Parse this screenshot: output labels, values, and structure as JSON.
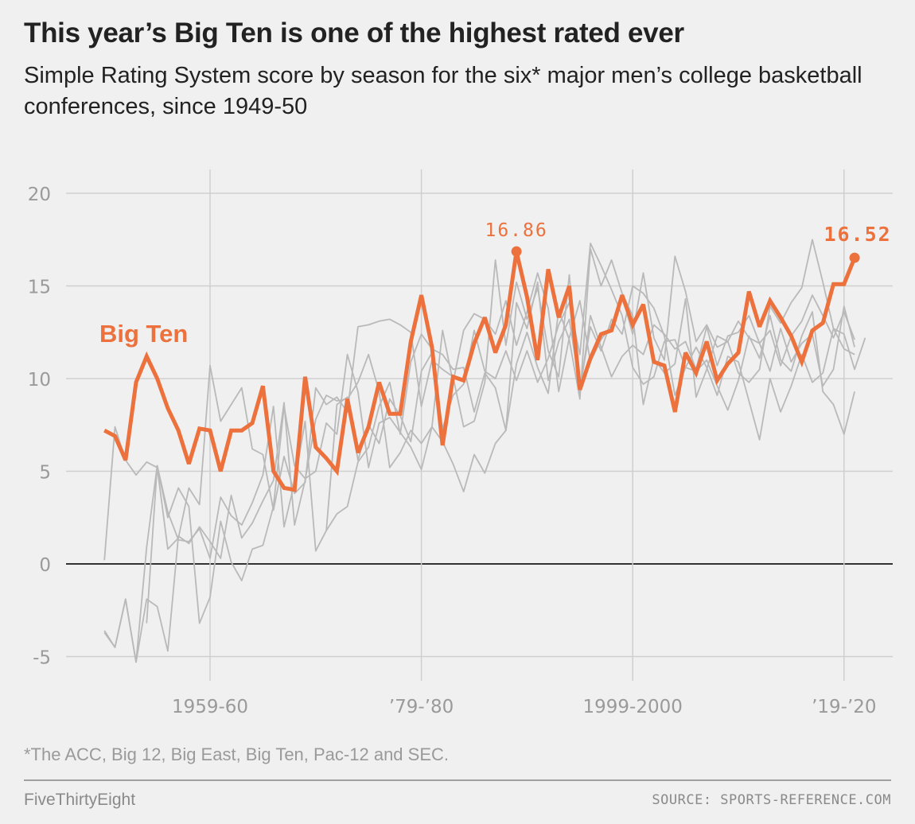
{
  "header": {
    "title": "This year’s Big Ten is one of the highest rated ever",
    "subtitle": "Simple Rating System score by season for the six* major men’s college basketball conferences, since 1949-50"
  },
  "footer": {
    "footnote": "*The ACC, Big 12, Big East, Big Ten, Pac-12 and SEC.",
    "brand": "FiveThirtyEight",
    "source": "SOURCE: SPORTS-REFERENCE.COM"
  },
  "colors": {
    "highlight": "#ec713c",
    "other_series": "#b9b9b9",
    "grid": "#cfcfcf",
    "zero_line": "#333333",
    "axis_text": "#9a9a9a"
  },
  "chart_data": {
    "type": "line",
    "title": "This year’s Big Ten is one of the highest rated ever",
    "xlabel": "",
    "ylabel": "",
    "ylim": [
      -6.5,
      21
    ],
    "xlim": [
      1945,
      2026
    ],
    "y_ticks": [
      20,
      15,
      10,
      5,
      0,
      -5
    ],
    "y_tick_labels": [
      "20",
      "15",
      "10",
      "5",
      "0",
      "-5"
    ],
    "x_ticks": [
      1959,
      1979,
      1999,
      2019
    ],
    "x_tick_labels": [
      "1959-60",
      "’79-’80",
      "1999-2000",
      "’19-’20"
    ],
    "grid": true,
    "x_unit": "season start year",
    "highlight_series": {
      "name": "Big Ten",
      "start_year": 1949,
      "values": [
        7.2,
        6.9,
        5.6,
        9.8,
        11.2,
        10.0,
        8.4,
        7.2,
        5.4,
        7.3,
        7.2,
        5.0,
        7.2,
        7.2,
        7.6,
        9.6,
        5.0,
        4.1,
        4.0,
        10.1,
        6.3,
        5.7,
        5.0,
        8.9,
        6.0,
        7.4,
        9.8,
        8.1,
        8.1,
        12.0,
        14.5,
        11.7,
        6.4,
        10.1,
        9.9,
        11.9,
        13.3,
        11.4,
        12.9,
        16.86,
        14.4,
        11.0,
        15.9,
        13.3,
        15.0,
        9.4,
        11.1,
        12.4,
        12.6,
        14.5,
        12.9,
        14.0,
        10.9,
        10.7,
        8.2,
        11.4,
        10.3,
        12.0,
        9.9,
        10.8,
        11.4,
        14.7,
        12.8,
        14.2,
        13.3,
        12.3,
        10.9,
        12.6,
        13.0,
        15.1,
        15.1,
        16.52
      ],
      "annotations": [
        {
          "season": 1988,
          "value": 16.86,
          "text": "16.86"
        },
        {
          "season": 2020,
          "value": 16.52,
          "text": "16.52"
        }
      ],
      "label": "Big Ten"
    },
    "other_series": [
      {
        "start_year": 1949,
        "values": [
          0.2,
          7.4,
          5.6,
          4.8,
          5.5,
          5.2,
          0.8,
          1.4,
          4.1,
          3.2,
          10.7,
          7.7,
          8.6,
          9.5,
          6.2,
          5.9,
          2.9,
          5.8,
          3.8,
          4.4,
          9.5,
          8.6,
          9.0,
          8.2,
          12.8,
          12.9,
          13.1,
          13.2,
          12.9,
          12.5,
          8.5,
          11.0,
          10.5,
          10.1,
          7.4,
          7.7,
          9.8,
          16.4,
          11.8,
          15.2,
          13.2,
          14.9,
          11.5,
          10.1,
          15.6,
          9.2,
          13.4,
          11.7,
          10.1,
          11.2,
          11.8,
          11.3,
          12.9,
          12.4,
          11.6,
          12.0,
          10.5,
          12.8,
          10.7,
          12.3,
          12.5,
          13.4,
          11.9,
          12.6,
          10.7,
          12.3,
          13.1,
          14.5,
          13.4,
          12.2,
          13.6,
          12.1
        ]
      },
      {
        "start_year": 1949,
        "values": [
          -3.6,
          -4.5,
          -1.9,
          -5.3,
          -1.9,
          -2.3,
          -4.7,
          1.5,
          1.1,
          2.0,
          1.2,
          0.3,
          3.7,
          1.4,
          2.2,
          3.4,
          4.5,
          8.7,
          2.1,
          4.5,
          7.8,
          9.1,
          8.8,
          8.9,
          9.8,
          11.3,
          9.3,
          5.2,
          6.0,
          7.2,
          6.5,
          7.4,
          12.6,
          9.8,
          12.6,
          13.5,
          13.2,
          12.4,
          14.2,
          11.8,
          13.6,
          15.7,
          13.8,
          9.3,
          12.2,
          14.2,
          10.9,
          12.1,
          12.9,
          14.5,
          12.4,
          15.7,
          12.2,
          11.0,
          16.6,
          14.7,
          12.0,
          12.9,
          11.7,
          12.0,
          10.3,
          9.8,
          10.5,
          13.9,
          13.0,
          14.1,
          14.9,
          17.5,
          15.2,
          12.7,
          11.6,
          11.3
        ]
      },
      {
        "start_year": 1949,
        "values": [
          -3.7,
          -4.5,
          -1.9,
          -5.3,
          0.9,
          5.3,
          2.8,
          1.3,
          1.2,
          1.9,
          0.3,
          3.6,
          2.6,
          2.1,
          3.3,
          4.8,
          8.5,
          2.0,
          4.4,
          7.7,
          0.7,
          1.8,
          2.7,
          3.1,
          5.5,
          6.3,
          8.5,
          9.8,
          7.0,
          10.9,
          12.4,
          11.6,
          11.3,
          10.5,
          10.6,
          8.2,
          10.3,
          9.5,
          7.2,
          14.1,
          12.7,
          15.2,
          9.9,
          12.0,
          13.2,
          9.5,
          12.8,
          11.5,
          13.2,
          12.4,
          15.0,
          14.6,
          13.8,
          12.3,
          9.1,
          10.6,
          10.4,
          11.0,
          9.6,
          8.3,
          9.9,
          12.3,
          11.1,
          13.4,
          11.0,
          10.4,
          12.3,
          13.6,
          9.3,
          8.6,
          7.0,
          9.3
        ]
      },
      {
        "start_year": 1953,
        "values": [
          -3.2,
          5.3,
          2.5,
          4.1,
          3.1,
          -3.2,
          -1.8,
          2.3,
          0.1,
          -0.9,
          0.8,
          1.0,
          3.1,
          8.5,
          5.3,
          4.6,
          5.0,
          7.6,
          7.0,
          11.3,
          9.3,
          5.2,
          7.6,
          7.9,
          7.1,
          6.3,
          5.1,
          7.4,
          6.6,
          5.4,
          3.9,
          5.9,
          4.9,
          6.5,
          7.2,
          10.8,
          12.5,
          10.6,
          9.2,
          13.7,
          12.1,
          8.9,
          17.0,
          15.0,
          16.4,
          14.6,
          13.4,
          8.6,
          11.1,
          10.3,
          10.8,
          14.3,
          9.0,
          10.5,
          12.3,
          12.0,
          13.1,
          12.2,
          11.9,
          10.4,
          12.7,
          10.9,
          11.9,
          12.4,
          9.6,
          10.5,
          13.9,
          11.7
        ]
      },
      {
        "start_year": 1970,
        "values": [
          1.8,
          8.6,
          9.0,
          5.6,
          7.5,
          6.5,
          8.9,
          8.0,
          6.6,
          10.4,
          11.4,
          7.3,
          9.1,
          9.7,
          12.6,
          10.4,
          10.0,
          11.5,
          9.9,
          11.5,
          9.8,
          11.1,
          12.9,
          14.1,
          11.3,
          17.3,
          16.1,
          14.8,
          13.4,
          10.6,
          9.7,
          10.1,
          12.0,
          12.1,
          10.6,
          11.7,
          10.6,
          9.1,
          11.2,
          10.9,
          8.8,
          6.7,
          10.0,
          8.2,
          9.6,
          11.3,
          9.8,
          10.3,
          12.7,
          12.4,
          10.5,
          12.2
        ]
      }
    ]
  }
}
